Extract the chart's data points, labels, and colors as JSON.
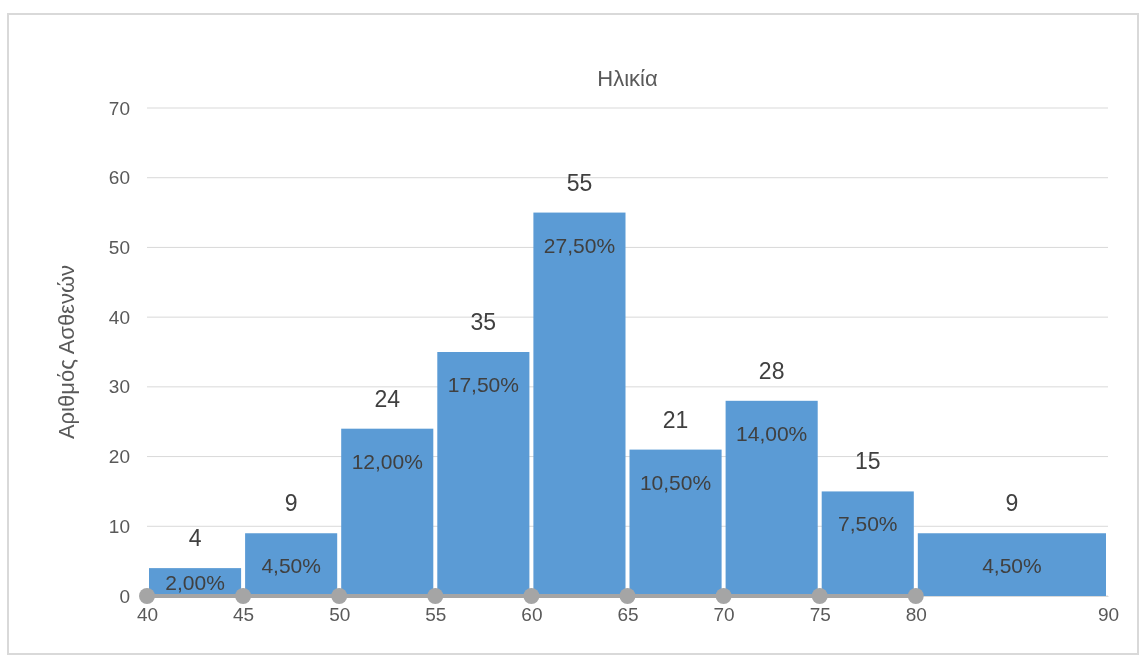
{
  "chart_data": {
    "type": "histogram",
    "title": "Ηλικία",
    "ylabel": "Αριθμός Ασθενών",
    "bins": [
      40,
      45,
      50,
      55,
      60,
      65,
      70,
      75,
      80,
      90
    ],
    "values": [
      4,
      9,
      24,
      35,
      55,
      21,
      28,
      15,
      9
    ],
    "color": "#5b9bd5",
    "value_labels": [
      "4",
      "9",
      "24",
      "35",
      "55",
      "21",
      "28",
      "15",
      "9"
    ],
    "annotations": [
      {
        "text": "2,00%",
        "x": 42.5,
        "y": 4
      },
      {
        "text": "4,50%",
        "x": 47.5,
        "y": 9
      },
      {
        "text": "12,00%",
        "x": 52.5,
        "y": 24
      },
      {
        "text": "17,50%",
        "x": 57.5,
        "y": 35
      },
      {
        "text": "27,50%",
        "x": 62.5,
        "y": 55
      },
      {
        "text": "10,50%",
        "x": 67.5,
        "y": 21
      },
      {
        "text": "14,00%",
        "x": 72.5,
        "y": 28
      },
      {
        "text": "7,50%",
        "x": 77.5,
        "y": 15
      },
      {
        "text": "4,50%",
        "x": 85,
        "y": 9
      }
    ],
    "series": [
      {
        "type": "line",
        "x": [
          40,
          45,
          50,
          55,
          60,
          65,
          70,
          75,
          80
        ],
        "values": [
          0,
          0,
          0,
          0,
          0,
          0,
          0,
          0,
          0
        ],
        "color": "#a5a5a5"
      }
    ],
    "marker": "circle",
    "xlim": [
      40,
      90
    ],
    "xticks": [
      40,
      45,
      50,
      55,
      60,
      65,
      70,
      75,
      80,
      90
    ],
    "ylim": [
      0,
      70
    ],
    "yticks": [
      0,
      10,
      20,
      30,
      40,
      50,
      60,
      70
    ],
    "grid": "y"
  }
}
